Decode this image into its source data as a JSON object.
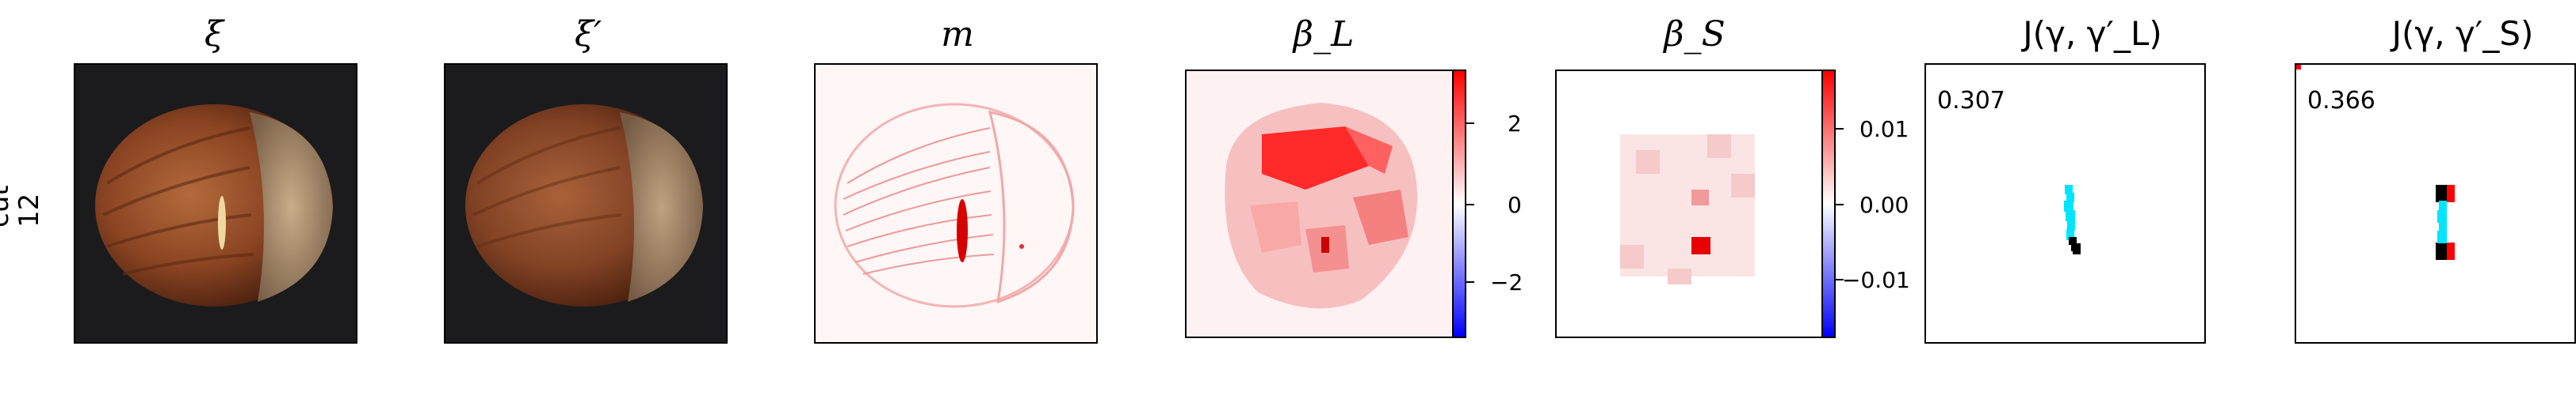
{
  "row_label": [
    "cut",
    "12"
  ],
  "panels": {
    "xi": {
      "title": "ξ"
    },
    "xi_prime": {
      "title": "ξ′"
    },
    "m": {
      "title": "m"
    },
    "beta_l": {
      "title": "β_L",
      "ticks": [
        "2",
        "0",
        "−2"
      ]
    },
    "beta_s": {
      "title": "β_S",
      "ticks": [
        "0.01",
        "0.00",
        "−0.01"
      ]
    },
    "j_l": {
      "title": "J(γ, γ′_L)",
      "score": "0.307"
    },
    "j_s": {
      "title": "J(γ, γ′_S)",
      "score": "0.366"
    }
  },
  "colors": {
    "positive": "#ff0000",
    "negative": "#0000ff",
    "path": "#00e5ff",
    "gt": "#000000"
  }
}
